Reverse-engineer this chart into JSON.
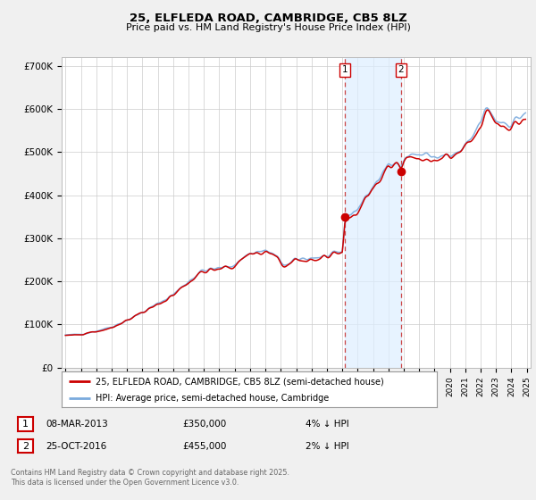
{
  "title": "25, ELFLEDA ROAD, CAMBRIDGE, CB5 8LZ",
  "subtitle": "Price paid vs. HM Land Registry's House Price Index (HPI)",
  "ylabel_ticks": [
    "£0",
    "£100K",
    "£200K",
    "£300K",
    "£400K",
    "£500K",
    "£600K",
    "£700K"
  ],
  "ytick_values": [
    0,
    100000,
    200000,
    300000,
    400000,
    500000,
    600000,
    700000
  ],
  "ylim": [
    0,
    720000
  ],
  "xlim_start": 1994.75,
  "xlim_end": 2025.25,
  "hpi_color": "#7aaadd",
  "price_color": "#cc0000",
  "background_color": "#f0f0f0",
  "plot_bg_color": "#ffffff",
  "grid_color": "#cccccc",
  "marker1_x": 2013.17,
  "marker1_y": 350000,
  "marker2_x": 2016.81,
  "marker2_y": 455000,
  "shade_start": 2013.17,
  "shade_end": 2016.81,
  "legend_label_red": "25, ELFLEDA ROAD, CAMBRIDGE, CB5 8LZ (semi-detached house)",
  "legend_label_blue": "HPI: Average price, semi-detached house, Cambridge",
  "table_row1": [
    "1",
    "08-MAR-2013",
    "£350,000",
    "4% ↓ HPI"
  ],
  "table_row2": [
    "2",
    "25-OCT-2016",
    "£455,000",
    "2% ↓ HPI"
  ],
  "footer": "Contains HM Land Registry data © Crown copyright and database right 2025.\nThis data is licensed under the Open Government Licence v3.0."
}
